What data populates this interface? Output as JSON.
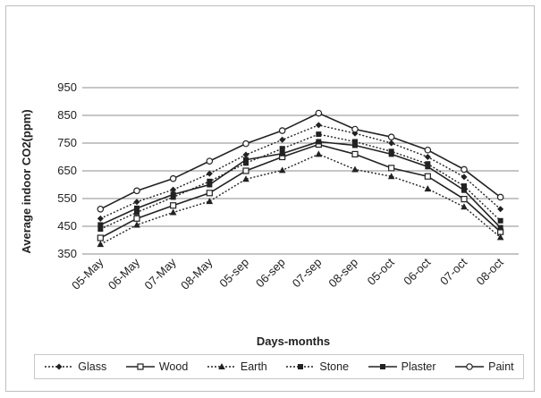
{
  "chart_data": {
    "type": "line",
    "title": "",
    "xlabel": "Days-months",
    "ylabel": "Average indoor CO2(ppm)",
    "ylim": [
      350,
      950
    ],
    "yticks": [
      350,
      450,
      550,
      650,
      750,
      850,
      950
    ],
    "grid": true,
    "legend_position": "bottom",
    "categories": [
      "05-May",
      "06-May",
      "07-May",
      "08-May",
      "05-sep",
      "06-sep",
      "07-sep",
      "08-sep",
      "05-oct",
      "06-oct",
      "07-oct",
      "08-oct"
    ],
    "series": [
      {
        "name": "Glass",
        "marker": "diamond",
        "line": "dotted",
        "values": [
          478,
          538,
          582,
          640,
          708,
          762,
          815,
          785,
          750,
          700,
          628,
          512
        ]
      },
      {
        "name": "Wood",
        "marker": "square-open",
        "line": "solid",
        "values": [
          408,
          478,
          525,
          570,
          650,
          700,
          745,
          710,
          660,
          630,
          548,
          430
        ]
      },
      {
        "name": "Earth",
        "marker": "triangle",
        "line": "dotted",
        "values": [
          385,
          455,
          500,
          540,
          620,
          652,
          710,
          655,
          630,
          585,
          520,
          410
        ]
      },
      {
        "name": "Stone",
        "marker": "square-filled",
        "line": "dotted",
        "values": [
          440,
          500,
          555,
          612,
          678,
          730,
          782,
          755,
          720,
          675,
          595,
          470
        ]
      },
      {
        "name": "Plaster",
        "marker": "square-filled",
        "line": "solid",
        "values": [
          455,
          515,
          565,
          600,
          690,
          712,
          755,
          742,
          710,
          665,
          580,
          445
        ]
      },
      {
        "name": "Paint",
        "marker": "circle-open",
        "line": "solid",
        "values": [
          512,
          578,
          622,
          685,
          748,
          795,
          858,
          800,
          772,
          725,
          655,
          555
        ]
      }
    ]
  },
  "legend": {
    "items": [
      {
        "label": "Glass"
      },
      {
        "label": "Wood"
      },
      {
        "label": "Earth"
      },
      {
        "label": "Stone"
      },
      {
        "label": "Plaster"
      },
      {
        "label": "Paint"
      }
    ]
  }
}
